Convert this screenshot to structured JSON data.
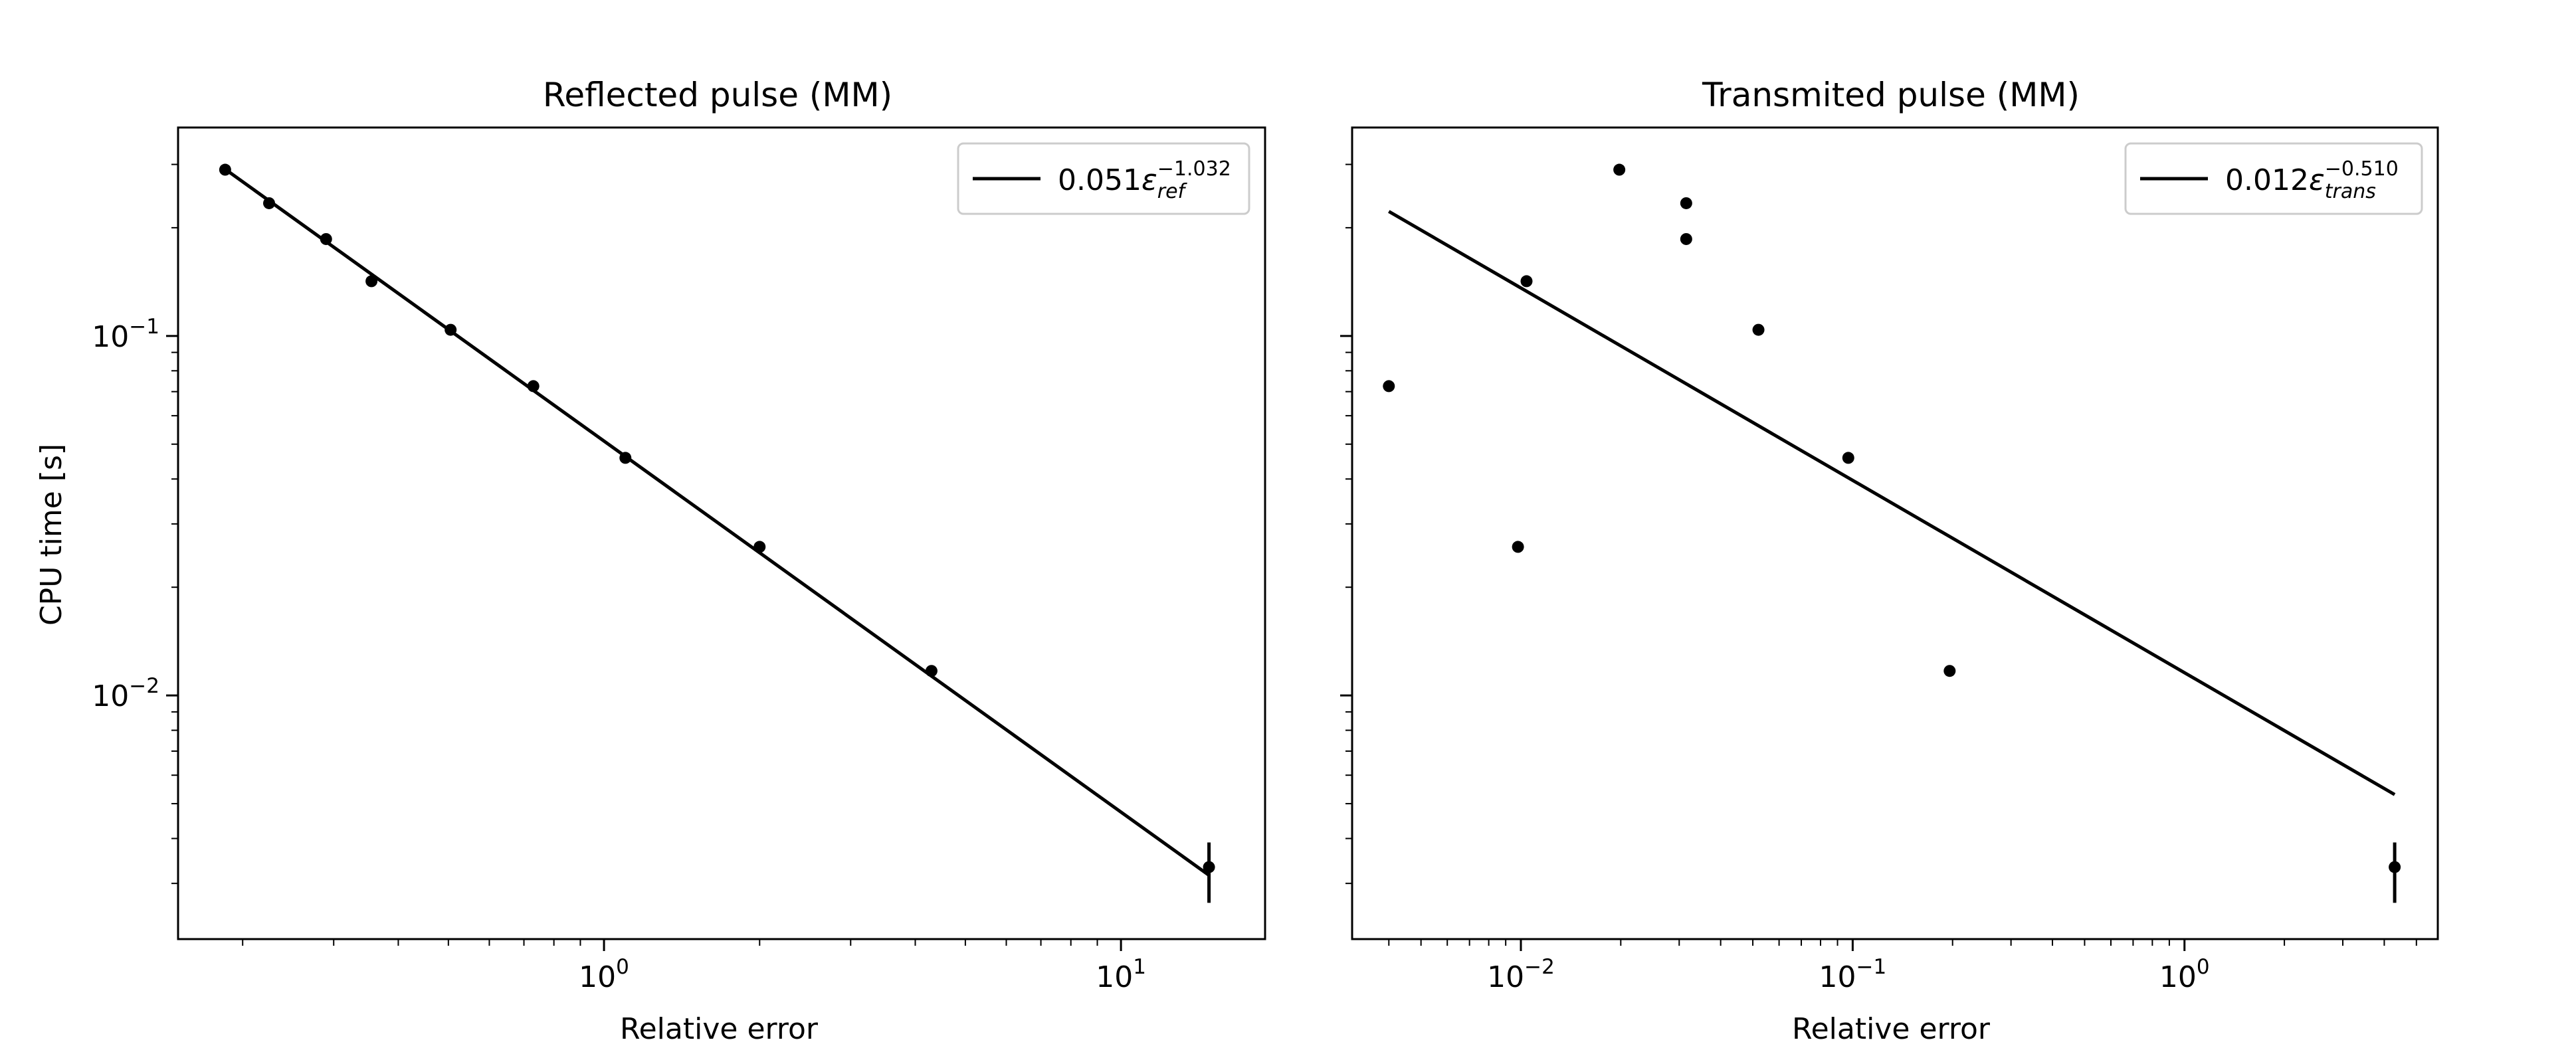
{
  "figure": {
    "background": "#ffffff"
  },
  "chart_data": [
    {
      "type": "scatter",
      "title": "Reflected pulse (MM)",
      "xlabel": "Relative error",
      "ylabel": "CPU time [s]",
      "xscale": "log",
      "yscale": "log",
      "xlim": [
        0.15,
        19.0
      ],
      "ylim": [
        0.0021,
        0.38
      ],
      "x_tick_labels": [
        {
          "value": 1,
          "base": "10",
          "exp": "0"
        },
        {
          "value": 10,
          "base": "10",
          "exp": "1"
        }
      ],
      "y_tick_labels": [
        {
          "value": 0.01,
          "base": "10",
          "exp": "−2"
        },
        {
          "value": 0.1,
          "base": "10",
          "exp": "−1"
        }
      ],
      "grid": false,
      "legend": {
        "placement": "top-right",
        "coefficient": "0.051",
        "symbol": "ε",
        "subscript": "ref",
        "exponent": "−1.032"
      },
      "series": [
        {
          "kind": "scatter",
          "color": "#000000",
          "points": [
            {
              "x": 0.185,
              "y": 0.29
            },
            {
              "x": 0.225,
              "y": 0.234
            },
            {
              "x": 0.29,
              "y": 0.186
            },
            {
              "x": 0.355,
              "y": 0.142
            },
            {
              "x": 0.505,
              "y": 0.104
            },
            {
              "x": 0.73,
              "y": 0.0725
            },
            {
              "x": 1.1,
              "y": 0.0458
            },
            {
              "x": 2.0,
              "y": 0.0259
            },
            {
              "x": 4.3,
              "y": 0.0117
            },
            {
              "x": 14.8,
              "y": 0.00333,
              "yerr": [
                0.00265,
                0.0039
              ]
            }
          ]
        },
        {
          "kind": "fit",
          "color": "#000000",
          "coefficient": 0.051,
          "exponent": -1.032,
          "x_range": [
            0.185,
            14.8
          ]
        }
      ]
    },
    {
      "type": "scatter",
      "title": "Transmited pulse (MM)",
      "xlabel": "Relative error",
      "ylabel": "",
      "xscale": "log",
      "yscale": "log",
      "xlim": [
        0.0031,
        5.8
      ],
      "ylim": [
        0.0021,
        0.38
      ],
      "x_tick_labels": [
        {
          "value": 0.01,
          "base": "10",
          "exp": "−2"
        },
        {
          "value": 0.1,
          "base": "10",
          "exp": "−1"
        },
        {
          "value": 1,
          "base": "10",
          "exp": "0"
        }
      ],
      "y_tick_labels": [],
      "grid": false,
      "legend": {
        "placement": "top-right",
        "coefficient": "0.012",
        "symbol": "ε",
        "subscript": "trans",
        "exponent": "−0.510"
      },
      "series": [
        {
          "kind": "scatter",
          "color": "#000000",
          "points": [
            {
              "x": 0.004,
              "y": 0.0725
            },
            {
              "x": 0.0098,
              "y": 0.0259
            },
            {
              "x": 0.0104,
              "y": 0.142
            },
            {
              "x": 0.0198,
              "y": 0.29
            },
            {
              "x": 0.0315,
              "y": 0.234
            },
            {
              "x": 0.0315,
              "y": 0.186
            },
            {
              "x": 0.052,
              "y": 0.104
            },
            {
              "x": 0.097,
              "y": 0.0458
            },
            {
              "x": 0.196,
              "y": 0.0117
            },
            {
              "x": 4.3,
              "y": 0.00333,
              "yerr": [
                0.00265,
                0.0039
              ]
            }
          ]
        },
        {
          "kind": "fit",
          "color": "#000000",
          "points": [
            {
              "x": 0.004,
              "y": 0.222
            },
            {
              "x": 4.3,
              "y": 0.0053
            }
          ]
        }
      ]
    }
  ]
}
